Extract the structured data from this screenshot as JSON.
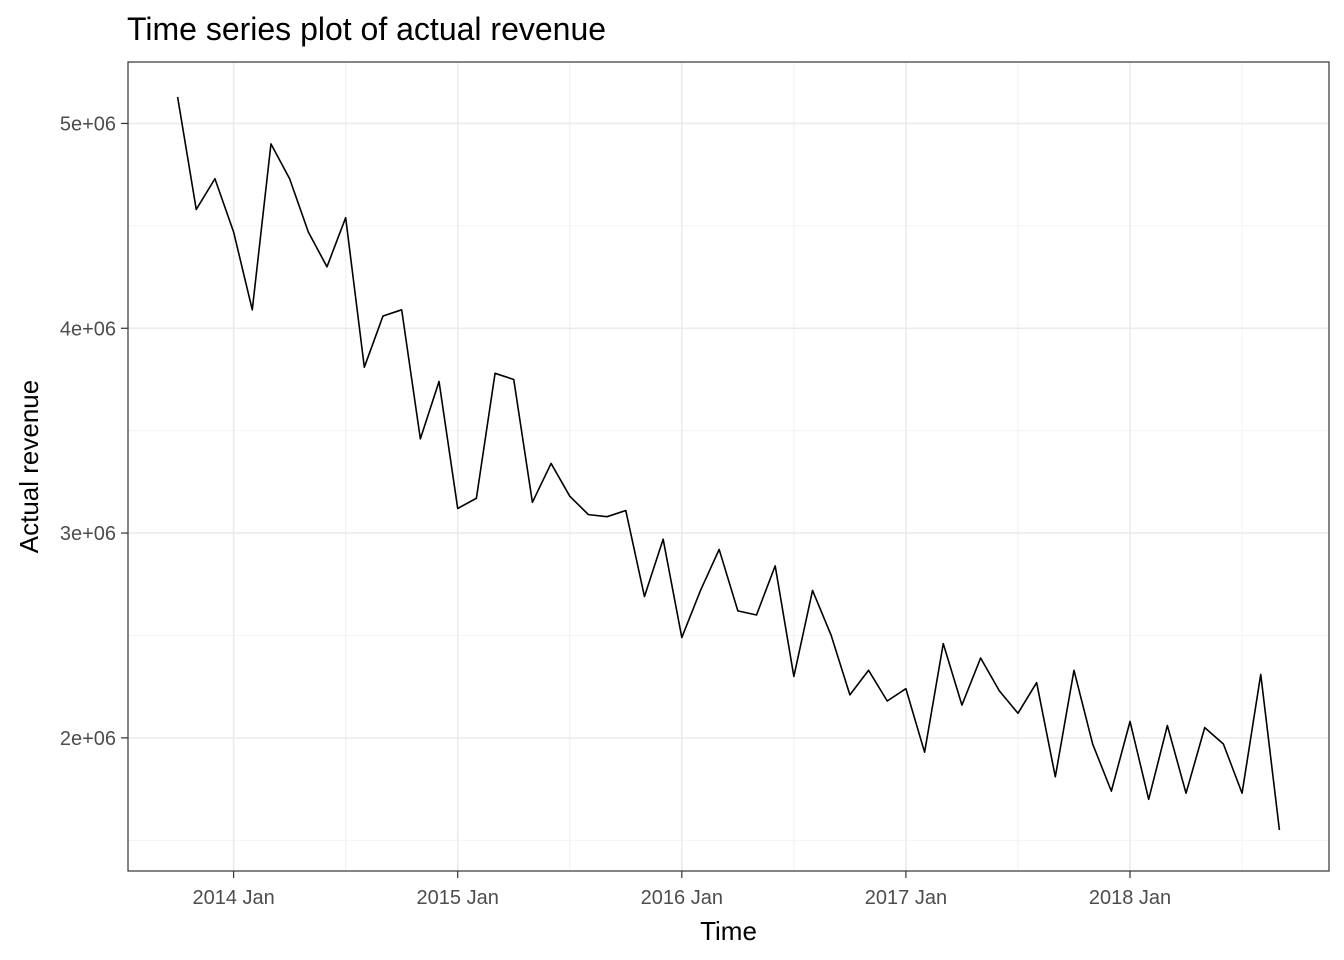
{
  "chart_data": {
    "type": "line",
    "title": "Time series plot of actual revenue",
    "xlabel": "Time",
    "ylabel": "Actual revenue",
    "x_start": "2013-10",
    "frequency": "monthly",
    "x_range": [
      "2013-10",
      "2018-09"
    ],
    "ylim": [
      1350000,
      5300000
    ],
    "x_ticks": [
      "2014 Jan",
      "2015 Jan",
      "2016 Jan",
      "2017 Jan",
      "2018 Jan"
    ],
    "y_ticks": [
      "2e+06",
      "3e+06",
      "4e+06",
      "5e+06"
    ],
    "y_tick_values": [
      2000000,
      3000000,
      4000000,
      5000000
    ],
    "grid": true,
    "series": [
      {
        "values": [
          5130000,
          4580000,
          4730000,
          4470000,
          4090000,
          4900000,
          4730000,
          4470000,
          4300000,
          4540000,
          3810000,
          4060000,
          4090000,
          3460000,
          3740000,
          3120000,
          3170000,
          3780000,
          3750000,
          3150000,
          3340000,
          3180000,
          3090000,
          3080000,
          3110000,
          2690000,
          2970000,
          2490000,
          2720000,
          2920000,
          2620000,
          2600000,
          2840000,
          2300000,
          2720000,
          2500000,
          2210000,
          2330000,
          2180000,
          2240000,
          1930000,
          2460000,
          2160000,
          2390000,
          2230000,
          2120000,
          2270000,
          1810000,
          2330000,
          1970000,
          1740000,
          2080000,
          1700000,
          2060000,
          1730000,
          2050000,
          1970000,
          1730000,
          2310000,
          1550000
        ]
      }
    ]
  }
}
